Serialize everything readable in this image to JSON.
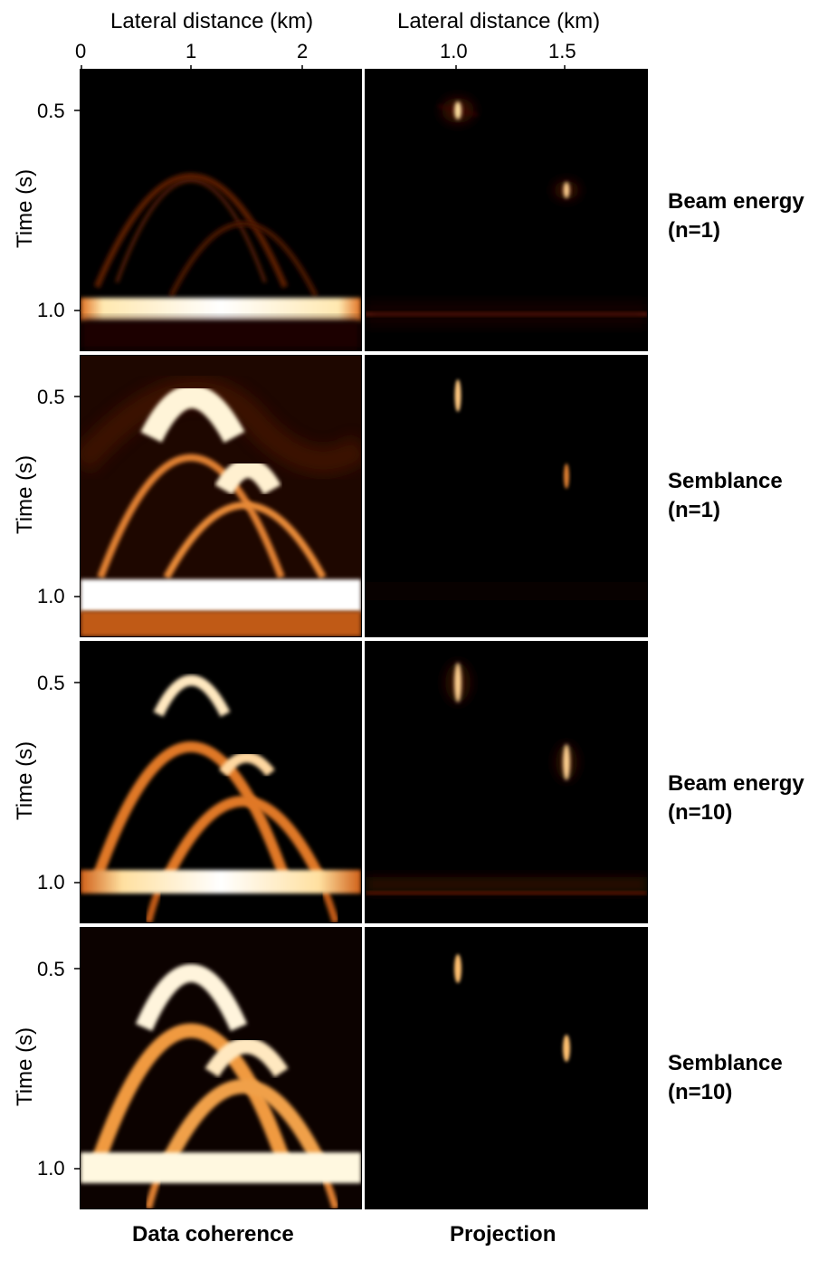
{
  "top_axis": {
    "left_title": "Lateral distance (km)",
    "right_title": "Lateral distance (km)",
    "left_ticks": [
      "0",
      "1",
      "2"
    ],
    "right_ticks": [
      "1.0",
      "1.5"
    ]
  },
  "y_axis": {
    "title": "Time (s)",
    "ticks": [
      "0.5",
      "1.0"
    ]
  },
  "rows": [
    {
      "label_line1": "Beam energy",
      "label_line2": "(n=1)"
    },
    {
      "label_line1": "Semblance",
      "label_line2": "(n=1)"
    },
    {
      "label_line1": "Beam energy",
      "label_line2": "(n=10)"
    },
    {
      "label_line1": "Semblance",
      "label_line2": "(n=10)"
    }
  ],
  "columns": {
    "left_label": "Data coherence",
    "right_label": "Projection"
  },
  "colors": {
    "background": "#000000",
    "colormap": [
      "#000000",
      "#3a0a00",
      "#7a2400",
      "#c85a10",
      "#f0a040",
      "#ffe8b0",
      "#ffffff"
    ]
  }
}
